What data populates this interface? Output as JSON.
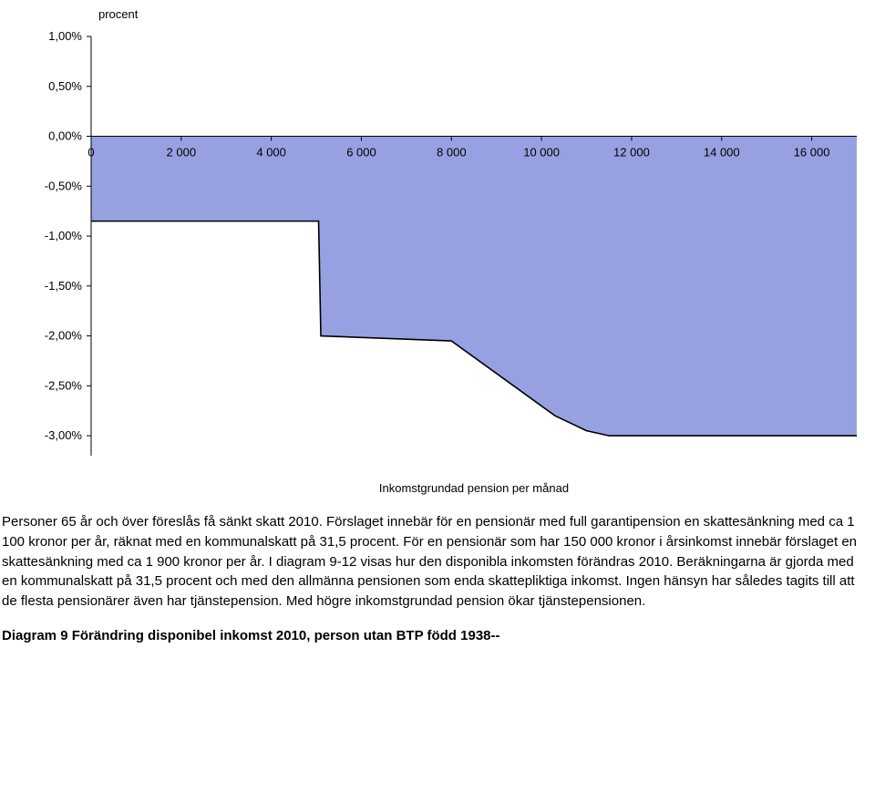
{
  "chart": {
    "type": "area",
    "y_title": "procent",
    "x_title": "Inkomstgrundad pension per månad",
    "title_fontsize": 13,
    "background_color": "#ffffff",
    "plot_bg": "#ffffff",
    "fill_color": "#97a1e1",
    "line_color": "#000000",
    "axis_color": "#000000",
    "tick_len": 5,
    "font_family": "Arial",
    "ylim": [
      -3.2,
      1.0
    ],
    "ytick_step": 0.5,
    "yticks": [
      "1,00%",
      "0,50%",
      "0,00%",
      "-0,50%",
      "-1,00%",
      "-1,50%",
      "-2,00%",
      "-2,50%",
      "-3,00%"
    ],
    "xlim": [
      0,
      17000
    ],
    "xticks": [
      0,
      2000,
      4000,
      6000,
      8000,
      10000,
      12000,
      14000,
      16000
    ],
    "xtick_labels": [
      "0",
      "2 000",
      "4 000",
      "6 000",
      "8 000",
      "10 000",
      "12 000",
      "14 000",
      "16 000"
    ],
    "series_xy": [
      [
        0,
        -0.85
      ],
      [
        5050,
        -0.85
      ],
      [
        5100,
        -2.0
      ],
      [
        8000,
        -2.05
      ],
      [
        10300,
        -2.8
      ],
      [
        11000,
        -2.95
      ],
      [
        11500,
        -3.0
      ],
      [
        17000,
        -3.0
      ]
    ]
  },
  "body_text": "Personer 65 år och över föreslås få sänkt skatt 2010. Förslaget innebär för en pensionär med full garantipension en skattesänkning med ca 1 100 kronor per år, räknat med en kommunalskatt på 31,5 procent. För en pensionär som har 150 000 kronor i årsinkomst innebär förslaget en skattesänkning med ca 1 900 kronor per år. I diagram 9-12 visas hur den disponibla inkomsten förändras 2010. Beräkningarna är gjorda med en kommunalskatt på 31,5 procent och med den allmänna pensionen som enda skattepliktiga inkomst. Ingen hänsyn har således tagits till att de flesta pensionärer även har tjänstepension. Med högre inkomstgrundad pension ökar tjänstepensionen.",
  "caption": "Diagram 9 Förändring disponibel inkomst 2010, person utan BTP född 1938--"
}
